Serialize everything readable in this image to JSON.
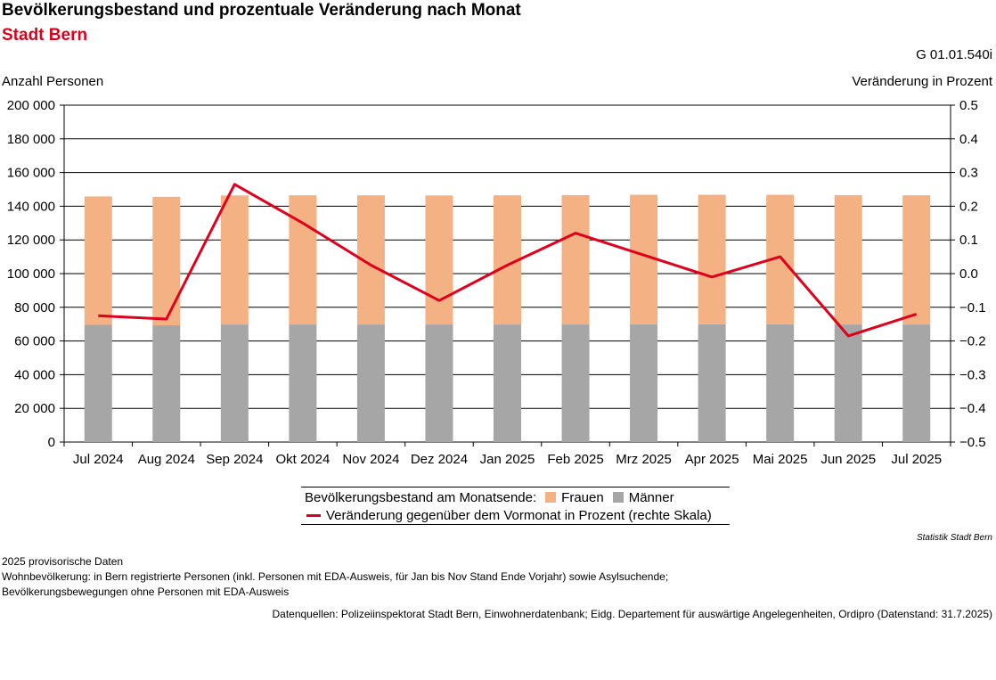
{
  "header": {
    "title": "Bevölkerungsbestand und prozentuale Veränderung nach Monat",
    "subtitle": "Stadt Bern",
    "code": "G 01.01.540i"
  },
  "chart_data": {
    "type": "bar",
    "stacked": true,
    "categories": [
      "Jul 2024",
      "Aug 2024",
      "Sep 2024",
      "Okt 2024",
      "Nov 2024",
      "Dez 2024",
      "Jan 2025",
      "Feb 2025",
      "Mrz 2025",
      "Apr 2025",
      "Mai 2025",
      "Jun 2025",
      "Jul 2025"
    ],
    "ylabel": "Anzahl Personen",
    "y2label": "Veränderung in Prozent",
    "ylim": [
      0,
      200000
    ],
    "y2lim": [
      -0.5,
      0.5
    ],
    "yticks": [
      "0",
      "20 000",
      "40 000",
      "60 000",
      "80 000",
      "100 000",
      "120 000",
      "140 000",
      "160 000",
      "180 000",
      "200 000"
    ],
    "y2ticks": [
      "−0.5",
      "−0.4",
      "−0.3",
      "−0.2",
      "−0.1",
      "0.0",
      "0.1",
      "0.2",
      "0.3",
      "0.4",
      "0.5"
    ],
    "grid": true,
    "series": [
      {
        "name": "Männer",
        "type": "bar",
        "axis": "left",
        "color": "#a6a6a6",
        "values": [
          69600,
          69300,
          69800,
          69800,
          69800,
          69800,
          69800,
          69800,
          69900,
          69900,
          69900,
          69800,
          69800
        ]
      },
      {
        "name": "Frauen",
        "type": "bar",
        "axis": "left",
        "color": "#f4b183",
        "values": [
          76200,
          76300,
          76600,
          76700,
          76700,
          76600,
          76700,
          76800,
          76900,
          76900,
          76900,
          76800,
          76700
        ]
      },
      {
        "name": "Veränderung gegenüber dem Vormonat in Prozent (rechte Skala)",
        "type": "line",
        "axis": "right",
        "color": "#e0001b",
        "values": [
          -0.125,
          -0.135,
          0.265,
          0.15,
          0.025,
          -0.08,
          0.025,
          0.12,
          0.055,
          -0.01,
          0.05,
          -0.185,
          -0.12
        ]
      }
    ]
  },
  "legend": {
    "prefix": "Bevölkerungsbestand am Monatsende:",
    "frauen": "Frauen",
    "maenner": "Männer",
    "line": "Veränderung gegenüber dem Vormonat in Prozent (rechte Skala)"
  },
  "footer": {
    "credit": "Statistik Stadt Bern",
    "note1": "2025 provisorische Daten",
    "note2": "Wohnbevölkerung: in Bern registrierte Personen (inkl. Personen mit EDA-Ausweis, für Jan bis Nov Stand Ende Vorjahr) sowie Asylsuchende;",
    "note3": "Bevölkerungsbewegungen ohne Personen mit EDA-Ausweis",
    "source": "Datenquellen: Polizeiinspektorat Stadt Bern, Einwohnerdatenbank; Eidg. Departement für auswärtige Angelegenheiten, Ordipro (Datenstand: 31.7.2025)"
  }
}
